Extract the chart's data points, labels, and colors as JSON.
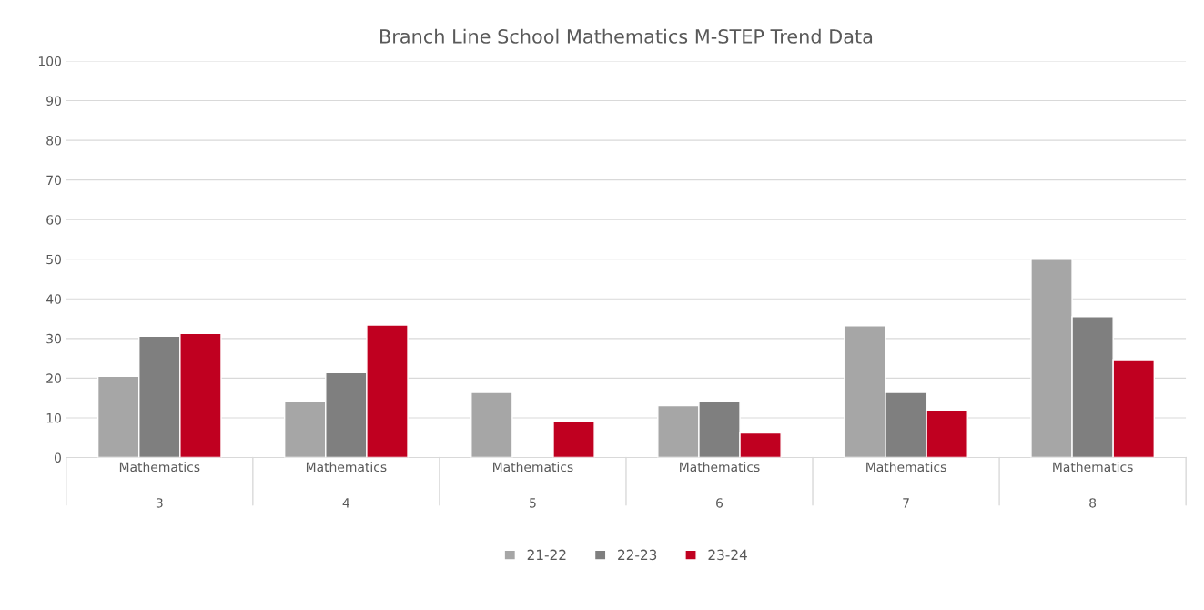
{
  "chart_data": {
    "type": "bar",
    "title": "Branch Line School Mathematics M-STEP Trend Data",
    "categories": [
      "Mathematics\n3",
      "Mathematics\n4",
      "Mathematics\n5",
      "Mathematics\n6",
      "Mathematics\n7",
      "Mathematics\n8"
    ],
    "series": [
      {
        "name": "21-22",
        "color": "#a6a6a6",
        "values": [
          20.5,
          14.1,
          16.4,
          13.1,
          33.2,
          50.0
        ]
      },
      {
        "name": "22-23",
        "color": "#7f7f7f",
        "values": [
          30.6,
          21.4,
          null,
          14.1,
          16.4,
          35.5
        ]
      },
      {
        "name": "23-24",
        "color": "#c00020",
        "values": [
          31.3,
          33.4,
          9.0,
          6.2,
          12.0,
          24.7
        ]
      }
    ],
    "ylim": [
      0,
      100
    ],
    "yticks": [
      0,
      10,
      20,
      30,
      40,
      50,
      60,
      70,
      80,
      90,
      100
    ],
    "grid": "y",
    "legend": "bottom"
  }
}
